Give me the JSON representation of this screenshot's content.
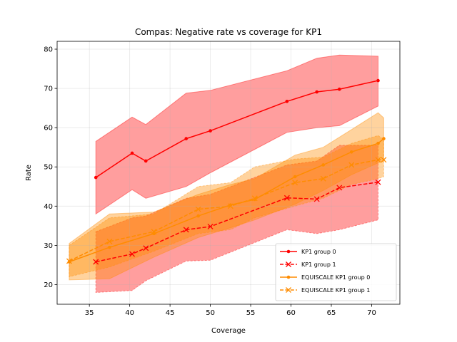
{
  "chart_data": {
    "type": "line",
    "title": "Compas: Negative rate vs coverage for KP1",
    "xlabel": "Coverage",
    "ylabel": "Rate",
    "xlim": [
      31.0,
      73.5
    ],
    "ylim": [
      15.0,
      82.0
    ],
    "xticks": [
      35,
      40,
      45,
      50,
      55,
      60,
      65,
      70
    ],
    "yticks": [
      20,
      30,
      40,
      50,
      60,
      70,
      80
    ],
    "grid": true,
    "legend_position": "lower-right",
    "series": [
      {
        "name": "KP1 group 0",
        "color": "#ff0000",
        "linestyle": "solid",
        "marker": "dot",
        "x": [
          35.8,
          40.3,
          42.0,
          47.0,
          50.0,
          59.5,
          63.2,
          66.0,
          70.8
        ],
        "y": [
          47.3,
          53.5,
          51.5,
          57.2,
          59.2,
          66.7,
          69.1,
          69.8,
          72.0
        ],
        "band_lower": [
          38.0,
          44.2,
          42.0,
          45.0,
          48.5,
          58.8,
          60.0,
          60.5,
          65.5
        ],
        "band_upper": [
          56.5,
          62.7,
          60.8,
          68.8,
          69.5,
          74.5,
          77.7,
          78.5,
          78.2
        ]
      },
      {
        "name": "KP1 group 1",
        "color": "#ff0000",
        "linestyle": "dashed",
        "marker": "x",
        "x": [
          35.8,
          40.3,
          42.0,
          47.0,
          50.0,
          59.5,
          63.2,
          66.0,
          70.8
        ],
        "y": [
          25.8,
          27.8,
          29.3,
          34.0,
          34.8,
          42.1,
          41.8,
          44.7,
          46.1
        ],
        "band_lower": [
          18.0,
          18.5,
          21.0,
          26.0,
          26.2,
          34.0,
          33.0,
          34.0,
          36.5
        ],
        "band_upper": [
          33.5,
          37.0,
          37.5,
          42.0,
          43.0,
          50.5,
          51.5,
          55.5,
          55.5
        ]
      },
      {
        "name": "EQUISCALE KP1 group 0",
        "color": "#ff8c00",
        "linestyle": "solid",
        "marker": "dot",
        "x": [
          32.5,
          37.5,
          43.0,
          48.5,
          52.5,
          55.5,
          60.5,
          64.0,
          67.5,
          70.8,
          71.5
        ],
        "y": [
          25.8,
          29.5,
          33.0,
          37.5,
          40.3,
          41.7,
          47.5,
          50.5,
          53.8,
          56.0,
          57.2
        ],
        "band_lower": [
          21.2,
          21.5,
          27.0,
          32.0,
          34.5,
          36.5,
          40.5,
          44.0,
          48.0,
          51.0,
          51.5
        ],
        "band_upper": [
          30.5,
          38.0,
          38.5,
          43.0,
          45.5,
          47.0,
          53.0,
          55.0,
          59.5,
          63.8,
          62.5
        ]
      },
      {
        "name": "EQUISCALE KP1 group 1",
        "color": "#ff8c00",
        "linestyle": "dashed",
        "marker": "x",
        "x": [
          32.5,
          37.5,
          43.0,
          48.5,
          52.5,
          55.5,
          60.5,
          64.0,
          67.5,
          70.8,
          71.5
        ],
        "y": [
          26.0,
          31.0,
          33.5,
          39.2,
          40.0,
          42.0,
          46.0,
          47.0,
          50.5,
          51.8,
          51.8
        ],
        "band_lower": [
          22.0,
          24.5,
          28.5,
          33.0,
          34.0,
          37.0,
          40.0,
          42.0,
          45.5,
          47.0,
          47.5
        ],
        "band_upper": [
          30.0,
          37.0,
          38.0,
          45.0,
          46.0,
          50.0,
          52.0,
          52.5,
          56.0,
          58.0,
          57.0
        ]
      }
    ]
  }
}
